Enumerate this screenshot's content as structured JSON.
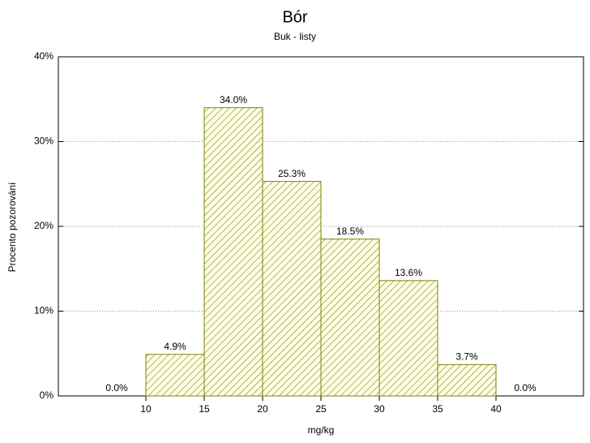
{
  "chart_data": {
    "type": "histogram",
    "title": "Bór",
    "subtitle": "Buk - listy",
    "x_label": "mg/kg",
    "y_label": "Procento pozorování",
    "bins": [
      5,
      10,
      15,
      20,
      25,
      30,
      35,
      40,
      45
    ],
    "values": [
      0.0,
      4.9,
      34.0,
      25.3,
      18.5,
      13.6,
      3.7,
      0.0
    ],
    "value_labels": [
      "0.0%",
      "4.9%",
      "34.0%",
      "25.3%",
      "18.5%",
      "13.6%",
      "3.7%",
      "0.0%"
    ],
    "color": "#808000",
    "xlim": [
      2.5,
      47.5
    ],
    "xticks": [
      10,
      15,
      20,
      25,
      30,
      35,
      40
    ],
    "ylim": [
      0,
      40
    ],
    "yticks": [
      {
        "value": 0,
        "label": "0%"
      },
      {
        "value": 10,
        "label": "10%"
      },
      {
        "value": 20,
        "label": "20%"
      },
      {
        "value": 30,
        "label": "30%"
      },
      {
        "value": 40,
        "label": "40%"
      }
    ],
    "grid": true
  }
}
